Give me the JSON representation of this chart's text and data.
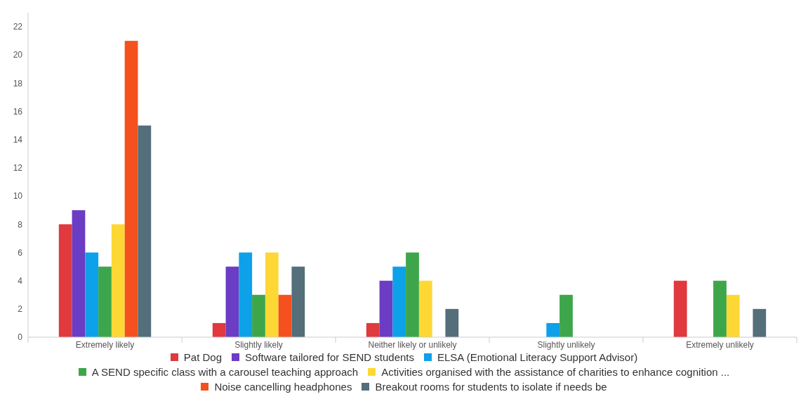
{
  "chart_data": {
    "type": "bar",
    "categories": [
      "Extremely likely",
      "Slightly likely",
      "Neither likely or unlikely",
      "Slightly unlikely",
      "Extremely unlikely"
    ],
    "series": [
      {
        "name": "Pat Dog",
        "color": "#e0393e",
        "values": [
          8,
          1,
          1,
          0,
          4
        ]
      },
      {
        "name": "Software tailored for SEND students",
        "color": "#6b3cc4",
        "values": [
          9,
          5,
          4,
          0,
          0
        ]
      },
      {
        "name": "ELSA (Emotional Literacy Support Advisor)",
        "color": "#0ca1e8",
        "values": [
          6,
          6,
          5,
          1,
          0
        ]
      },
      {
        "name": "A SEND specific class with a carousel teaching approach",
        "color": "#3da64a",
        "values": [
          5,
          3,
          6,
          3,
          4
        ]
      },
      {
        "name": "Activities organised with the assistance of charities to enhance cognition ...",
        "color": "#fdd835",
        "values": [
          8,
          6,
          4,
          0,
          3
        ]
      },
      {
        "name": "Noise cancelling headphones",
        "color": "#f4511e",
        "values": [
          21,
          3,
          0,
          0,
          0
        ]
      },
      {
        "name": "Breakout rooms for students to isolate if needs be",
        "color": "#546e7a",
        "values": [
          15,
          5,
          2,
          0,
          2
        ]
      }
    ],
    "ylim": [
      0,
      23
    ],
    "yticks": [
      0,
      2,
      4,
      6,
      8,
      10,
      12,
      14,
      16,
      18,
      20,
      22
    ],
    "grid": false,
    "legend": "bottom"
  }
}
